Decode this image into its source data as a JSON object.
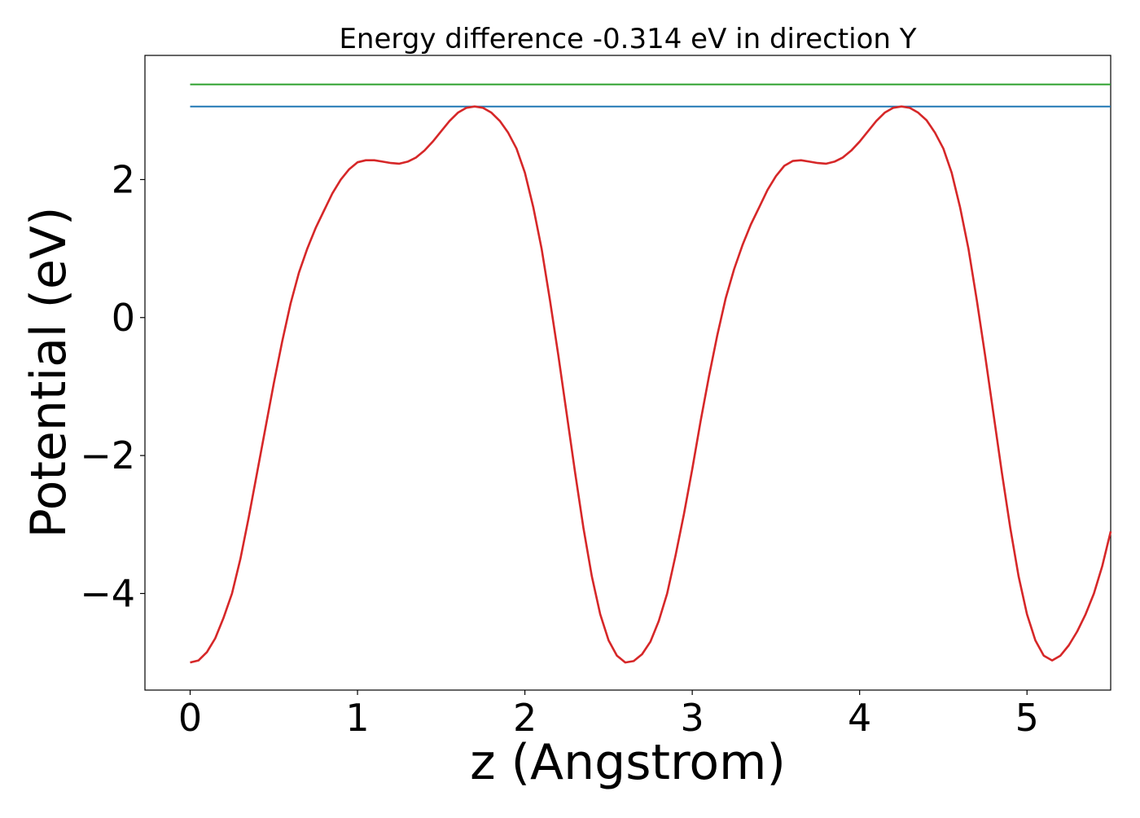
{
  "chart_data": {
    "type": "line",
    "title": "Energy difference -0.314 eV in direction Y",
    "xlabel": "z (Angstrom)",
    "ylabel": "Potential (eV)",
    "xlim": [
      -0.27,
      5.5
    ],
    "ylim": [
      -5.4,
      3.8
    ],
    "xticks": [
      0,
      1,
      2,
      3,
      4,
      5
    ],
    "yticks": [
      -4,
      -2,
      0,
      2
    ],
    "xtick_labels": [
      "0",
      "1",
      "2",
      "3",
      "4",
      "5"
    ],
    "ytick_labels": [
      "−4",
      "−2",
      "0",
      "2"
    ],
    "grid": false,
    "series": [
      {
        "color": "#2ca02c",
        "x": [
          0,
          5.5
        ],
        "y": [
          3.38,
          3.38
        ]
      },
      {
        "color": "#1f77b4",
        "x": [
          0,
          5.5
        ],
        "y": [
          3.06,
          3.06
        ]
      },
      {
        "color": "#d62728",
        "x": [
          0.0,
          0.05,
          0.1,
          0.15,
          0.2,
          0.25,
          0.3,
          0.35,
          0.4,
          0.45,
          0.5,
          0.55,
          0.6,
          0.65,
          0.7,
          0.75,
          0.8,
          0.85,
          0.9,
          0.95,
          1.0,
          1.05,
          1.1,
          1.15,
          1.2,
          1.25,
          1.3,
          1.35,
          1.4,
          1.45,
          1.5,
          1.55,
          1.6,
          1.65,
          1.7,
          1.75,
          1.8,
          1.85,
          1.9,
          1.95,
          2.0,
          2.05,
          2.1,
          2.15,
          2.2,
          2.25,
          2.3,
          2.35,
          2.4,
          2.45,
          2.5,
          2.55,
          2.6,
          2.65,
          2.7,
          2.75,
          2.8,
          2.85,
          2.9,
          2.95,
          3.0,
          3.05,
          3.1,
          3.15,
          3.2,
          3.25,
          3.3,
          3.35,
          3.4,
          3.45,
          3.5,
          3.55,
          3.6,
          3.65,
          3.7,
          3.75,
          3.8,
          3.85,
          3.9,
          3.95,
          4.0,
          4.05,
          4.1,
          4.15,
          4.2,
          4.25,
          4.3,
          4.35,
          4.4,
          4.45,
          4.5,
          4.55,
          4.6,
          4.65,
          4.7,
          4.75,
          4.8,
          4.85,
          4.9,
          4.95,
          5.0,
          5.05,
          5.1,
          5.15,
          5.2,
          5.25,
          5.3,
          5.35,
          5.4,
          5.45,
          5.5
        ],
        "y": [
          -5.0,
          -4.97,
          -4.85,
          -4.65,
          -4.35,
          -4.0,
          -3.5,
          -2.9,
          -2.25,
          -1.6,
          -0.95,
          -0.35,
          0.2,
          0.65,
          1.0,
          1.3,
          1.55,
          1.8,
          2.0,
          2.15,
          2.25,
          2.28,
          2.28,
          2.26,
          2.24,
          2.23,
          2.26,
          2.32,
          2.42,
          2.55,
          2.7,
          2.85,
          2.97,
          3.04,
          3.06,
          3.04,
          2.97,
          2.85,
          2.68,
          2.45,
          2.1,
          1.6,
          1.0,
          0.25,
          -0.55,
          -1.4,
          -2.25,
          -3.05,
          -3.75,
          -4.3,
          -4.68,
          -4.9,
          -5.0,
          -4.98,
          -4.88,
          -4.7,
          -4.4,
          -4.0,
          -3.45,
          -2.85,
          -2.2,
          -1.5,
          -0.85,
          -0.25,
          0.28,
          0.7,
          1.05,
          1.35,
          1.6,
          1.85,
          2.05,
          2.2,
          2.27,
          2.28,
          2.26,
          2.24,
          2.23,
          2.26,
          2.32,
          2.42,
          2.55,
          2.7,
          2.85,
          2.97,
          3.04,
          3.06,
          3.04,
          2.97,
          2.86,
          2.68,
          2.45,
          2.1,
          1.6,
          1.0,
          0.25,
          -0.55,
          -1.4,
          -2.25,
          -3.05,
          -3.75,
          -4.3,
          -4.68,
          -4.9,
          -4.97,
          -4.9,
          -4.75,
          -4.55,
          -4.3,
          -4.0,
          -3.6,
          -3.1
        ]
      }
    ]
  }
}
